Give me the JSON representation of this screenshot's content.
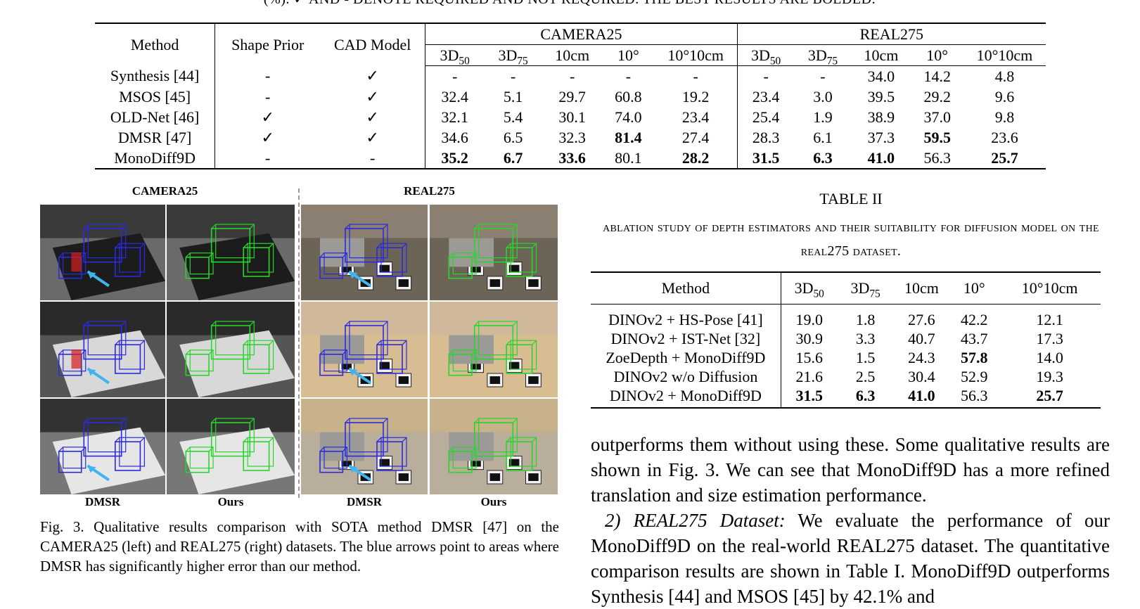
{
  "table1": {
    "caption_fragment": "(%). ✓ AND - DENOTE REQUIRED AND NOT REQUIRED. THE BEST RESULTS ARE BOLDED.",
    "headers": {
      "method": "Method",
      "shape_prior": "Shape Prior",
      "cad_model": "CAD Model",
      "group1": "CAMERA25",
      "group2": "REAL275",
      "metrics": [
        "3D50",
        "3D75",
        "10cm",
        "10°",
        "10°10cm"
      ]
    },
    "rows": [
      {
        "method": "Synthesis [44]",
        "shape_prior": "-",
        "cad_model": "✓",
        "camera": [
          "-",
          "-",
          "-",
          "-",
          "-"
        ],
        "real": [
          "-",
          "-",
          "34.0",
          "14.2",
          "4.8"
        ]
      },
      {
        "method": "MSOS [45]",
        "shape_prior": "-",
        "cad_model": "✓",
        "camera": [
          "32.4",
          "5.1",
          "29.7",
          "60.8",
          "19.2"
        ],
        "real": [
          "23.4",
          "3.0",
          "39.5",
          "29.2",
          "9.6"
        ]
      },
      {
        "method": "OLD-Net [46]",
        "shape_prior": "✓",
        "cad_model": "✓",
        "camera": [
          "32.1",
          "5.4",
          "30.1",
          "74.0",
          "23.4"
        ],
        "real": [
          "25.4",
          "1.9",
          "38.9",
          "37.0",
          "9.8"
        ]
      },
      {
        "method": "DMSR [47]",
        "shape_prior": "✓",
        "cad_model": "✓",
        "camera": [
          "34.6",
          "6.5",
          "32.3",
          "81.4",
          "27.4"
        ],
        "real": [
          "28.3",
          "6.1",
          "37.3",
          "59.5",
          "23.6"
        ]
      },
      {
        "method": "MonoDiff9D",
        "shape_prior": "-",
        "cad_model": "-",
        "camera": [
          "35.2",
          "6.7",
          "33.6",
          "80.1",
          "28.2"
        ],
        "real": [
          "31.5",
          "6.3",
          "41.0",
          "56.3",
          "25.7"
        ]
      }
    ],
    "bold": {
      "camera": [
        [
          4,
          0
        ],
        [
          4,
          1
        ],
        [
          4,
          2
        ],
        [
          3,
          3
        ],
        [
          4,
          4
        ]
      ],
      "real": [
        [
          4,
          0
        ],
        [
          4,
          1
        ],
        [
          4,
          2
        ],
        [
          3,
          3
        ],
        [
          4,
          4
        ]
      ]
    }
  },
  "figure": {
    "col_title_left": "CAMERA25",
    "col_title_right": "REAL275",
    "bottom_labels": [
      "DMSR",
      "Ours",
      "DMSR",
      "Ours"
    ],
    "caption": "Fig. 3.   Qualitative results comparison with SOTA method DMSR [47] on the CAMERA25 (left) and REAL275 (right) datasets. The blue arrows point to areas where DMSR has significantly higher error than our method.",
    "colors": {
      "dmsr_box": "#2a2adf",
      "ours_box": "#27d62a",
      "arrow": "#3fb4ef",
      "red_box": "#d62020"
    }
  },
  "table2": {
    "title": "TABLE II",
    "caption": "ABLATION STUDY OF DEPTH ESTIMATORS AND THEIR SUITABILITY FOR DIFFUSION MODEL ON THE REAL275 DATASET.",
    "headers": [
      "Method",
      "3D50",
      "3D75",
      "10cm",
      "10°",
      "10°10cm"
    ],
    "rows": [
      {
        "method": "DINOv2 + HS-Pose [41]",
        "vals": [
          "19.0",
          "1.8",
          "27.6",
          "42.2",
          "12.1"
        ]
      },
      {
        "method": "DINOv2 + IST-Net [32]",
        "vals": [
          "30.9",
          "3.3",
          "40.7",
          "43.7",
          "17.3"
        ]
      },
      {
        "method": "ZoeDepth + MonoDiff9D",
        "vals": [
          "15.6",
          "1.5",
          "24.3",
          "57.8",
          "14.0"
        ]
      },
      {
        "method": "DINOv2 w/o Diffusion",
        "vals": [
          "21.6",
          "2.5",
          "30.4",
          "52.9",
          "19.3"
        ]
      },
      {
        "method": "DINOv2 + MonoDiff9D",
        "vals": [
          "31.5",
          "6.3",
          "41.0",
          "56.3",
          "25.7"
        ]
      }
    ],
    "bold": [
      [
        4,
        0
      ],
      [
        4,
        1
      ],
      [
        4,
        2
      ],
      [
        2,
        3
      ],
      [
        4,
        4
      ]
    ]
  },
  "body_text": {
    "para1": "outperforms them without using these. Some qualitative results are shown in Fig. 3. We can see that MonoDiff9D has a more refined translation and size estimation performance.",
    "para2_heading": "2) REAL275 Dataset:",
    "para2": " We evaluate the performance of our MonoDiff9D on the real-world REAL275 dataset. The quantitative comparison results are shown in Table I. MonoDiff9D outperforms Synthesis [44] and MSOS [45] by 42.1% and"
  }
}
